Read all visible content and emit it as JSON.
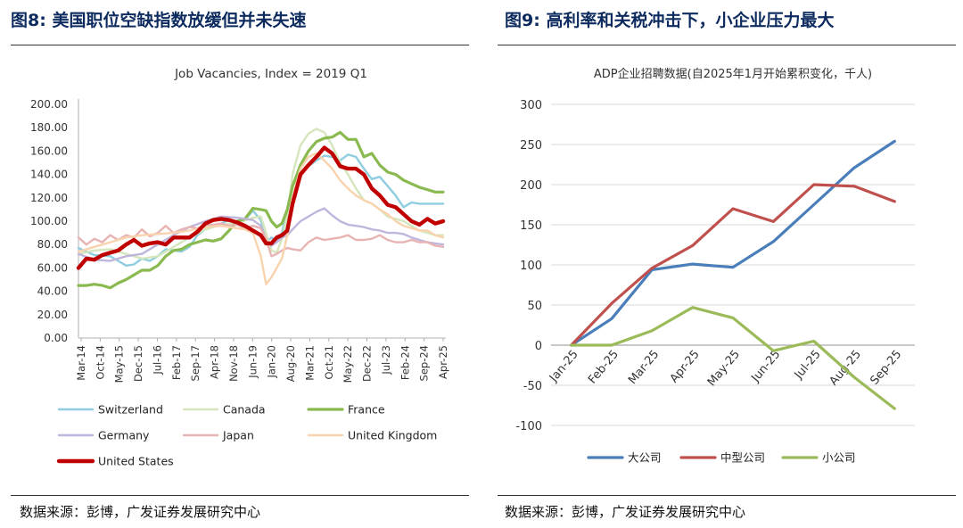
{
  "left_figure": {
    "number": "图8:",
    "title": "美国职位空缺指数放缓但并未失速",
    "source": "数据来源：彭博，广发证券发展研究中心"
  },
  "right_figure": {
    "number": "图9:",
    "title": "高利率和关税冲击下，小企业压力最大",
    "source": "数据来源：彭博，广发证券发展研究中心"
  },
  "chart_data": [
    {
      "type": "line",
      "title": "Job Vacancies, Index = 2019 Q1",
      "xlabel": "",
      "ylabel": "",
      "ylim": [
        0,
        200
      ],
      "ytick_labels": [
        "0.00",
        "20.00",
        "40.00",
        "60.00",
        "80.00",
        "100.00",
        "120.00",
        "140.00",
        "160.00",
        "180.00",
        "200.00"
      ],
      "x_tick_labels": [
        "Mar-14",
        "Oct-14",
        "May-15",
        "Dec-15",
        "Jul-16",
        "Feb-17",
        "Sep-17",
        "Apr-18",
        "Nov-18",
        "Jun-19",
        "Jan-20",
        "Aug-20",
        "Mar-21",
        "Oct-21",
        "May-22",
        "Dec-22",
        "Jul-23",
        "Feb-24",
        "Sep-24",
        "Apr-25"
      ],
      "x_range_months": [
        0,
        139
      ],
      "legend_position": "bottom",
      "series": [
        {
          "name": "Switzerland",
          "color": "#8fcde0",
          "width": 2.4,
          "x": [
            0,
            6,
            12,
            15,
            18,
            21,
            24,
            27,
            30,
            33,
            36,
            39,
            42,
            45,
            48,
            51,
            54,
            57,
            60,
            63,
            66,
            69,
            71,
            73,
            75,
            77,
            79,
            81,
            84,
            87,
            90,
            93,
            96,
            99,
            102,
            105,
            108,
            111,
            114,
            117,
            120,
            123,
            126,
            129,
            132,
            135,
            138
          ],
          "y": [
            77,
            71,
            70,
            66,
            62,
            63,
            68,
            66,
            70,
            76,
            75,
            74,
            78,
            88,
            93,
            95,
            98,
            101,
            100,
            101,
            109,
            101,
            82,
            86,
            83,
            90,
            110,
            130,
            142,
            147,
            152,
            156,
            155,
            152,
            157,
            155,
            145,
            136,
            138,
            130,
            122,
            112,
            116,
            115,
            115,
            115,
            115
          ]
        },
        {
          "name": "Canada",
          "color": "#d5e6bd",
          "width": 2.4,
          "x": [
            0,
            6,
            12,
            18,
            24,
            30,
            36,
            42,
            48,
            54,
            60,
            66,
            69,
            71,
            73,
            75,
            77,
            79,
            81,
            84,
            87,
            90,
            93,
            96,
            99,
            102,
            105,
            108,
            111,
            114,
            117,
            120,
            123,
            126,
            129,
            132,
            135,
            138
          ],
          "y": [
            72,
            75,
            76,
            72,
            68,
            70,
            78,
            86,
            93,
            97,
            98,
            103,
            104,
            90,
            75,
            73,
            85,
            105,
            140,
            165,
            175,
            179,
            176,
            165,
            150,
            140,
            128,
            118,
            115,
            110,
            104,
            102,
            100,
            96,
            92,
            90,
            88,
            88
          ]
        },
        {
          "name": "France",
          "color": "#8aba4f",
          "width": 3.2,
          "x": [
            0,
            3,
            6,
            9,
            12,
            15,
            18,
            21,
            24,
            27,
            30,
            33,
            36,
            39,
            42,
            45,
            48,
            51,
            54,
            57,
            60,
            63,
            66,
            69,
            71,
            73,
            75,
            77,
            79,
            81,
            84,
            87,
            90,
            93,
            96,
            99,
            102,
            105,
            108,
            111,
            114,
            117,
            120,
            123,
            126,
            129,
            132,
            135,
            138
          ],
          "y": [
            45,
            45,
            46,
            45,
            43,
            47,
            50,
            54,
            58,
            58,
            62,
            70,
            75,
            76,
            80,
            82,
            84,
            83,
            85,
            92,
            100,
            102,
            111,
            110,
            109,
            100,
            95,
            98,
            110,
            130,
            148,
            160,
            168,
            171,
            172,
            176,
            170,
            170,
            155,
            158,
            148,
            142,
            140,
            135,
            132,
            129,
            127,
            125,
            125
          ]
        },
        {
          "name": "Germany",
          "color": "#c0b6dc",
          "width": 2.4,
          "x": [
            0,
            6,
            12,
            18,
            24,
            30,
            36,
            42,
            48,
            54,
            60,
            66,
            69,
            71,
            73,
            75,
            77,
            79,
            81,
            84,
            87,
            90,
            93,
            96,
            99,
            102,
            105,
            108,
            111,
            114,
            117,
            120,
            123,
            126,
            129,
            132,
            135,
            138
          ],
          "y": [
            72,
            67,
            66,
            70,
            72,
            80,
            88,
            95,
            100,
            104,
            103,
            101,
            96,
            84,
            79,
            82,
            86,
            88,
            93,
            100,
            104,
            108,
            111,
            105,
            100,
            97,
            96,
            95,
            93,
            92,
            90,
            90,
            89,
            86,
            84,
            82,
            81,
            80
          ]
        },
        {
          "name": "Japan",
          "color": "#e8b3b3",
          "width": 2.4,
          "x": [
            0,
            3,
            6,
            9,
            12,
            15,
            18,
            21,
            24,
            27,
            30,
            33,
            36,
            39,
            42,
            45,
            48,
            51,
            54,
            57,
            60,
            63,
            66,
            69,
            71,
            73,
            75,
            77,
            79,
            81,
            84,
            87,
            90,
            93,
            96,
            99,
            102,
            105,
            108,
            111,
            114,
            117,
            120,
            123,
            126,
            129,
            132,
            135,
            138
          ],
          "y": [
            86,
            80,
            85,
            82,
            88,
            84,
            88,
            86,
            93,
            87,
            90,
            96,
            90,
            93,
            95,
            94,
            96,
            97,
            98,
            96,
            97,
            94,
            96,
            94,
            85,
            70,
            72,
            75,
            77,
            76,
            75,
            82,
            86,
            84,
            85,
            86,
            88,
            84,
            84,
            85,
            88,
            84,
            82,
            82,
            84,
            82,
            82,
            79,
            78
          ]
        },
        {
          "name": "United Kingdom",
          "color": "#f9d3ad",
          "width": 2.4,
          "x": [
            0,
            6,
            12,
            18,
            24,
            30,
            36,
            42,
            48,
            54,
            60,
            63,
            66,
            69,
            71,
            73,
            75,
            77,
            79,
            81,
            84,
            87,
            90,
            93,
            96,
            99,
            102,
            105,
            108,
            111,
            114,
            117,
            120,
            123,
            126,
            129,
            132,
            135,
            138
          ],
          "y": [
            74,
            78,
            82,
            86,
            88,
            89,
            90,
            92,
            95,
            96,
            94,
            93,
            90,
            70,
            46,
            52,
            60,
            68,
            88,
            120,
            145,
            155,
            158,
            152,
            145,
            135,
            128,
            122,
            118,
            115,
            110,
            106,
            100,
            96,
            94,
            92,
            92,
            88,
            86
          ]
        },
        {
          "name": "United States",
          "color": "#c00000",
          "width": 4.4,
          "x": [
            0,
            3,
            6,
            9,
            12,
            15,
            18,
            21,
            24,
            27,
            30,
            33,
            36,
            39,
            42,
            45,
            48,
            51,
            54,
            57,
            60,
            63,
            66,
            69,
            71,
            73,
            75,
            77,
            79,
            81,
            84,
            87,
            90,
            93,
            96,
            99,
            102,
            105,
            108,
            111,
            114,
            117,
            120,
            123,
            126,
            129,
            132,
            135,
            138
          ],
          "y": [
            60,
            68,
            67,
            71,
            73,
            75,
            80,
            84,
            79,
            81,
            82,
            80,
            86,
            86,
            86,
            91,
            98,
            101,
            102,
            101,
            99,
            96,
            92,
            88,
            81,
            81,
            86,
            88,
            92,
            115,
            140,
            148,
            155,
            163,
            158,
            147,
            145,
            145,
            140,
            128,
            122,
            114,
            112,
            106,
            100,
            97,
            102,
            98,
            100
          ]
        }
      ]
    },
    {
      "type": "line",
      "title": "ADP企业招聘数据(自2025年1月开始累积变化，千人)",
      "xlabel": "",
      "ylabel": "",
      "ylim": [
        -100,
        300
      ],
      "ytick_labels": [
        "-100",
        "-50",
        "0",
        "50",
        "100",
        "150",
        "200",
        "250",
        "300"
      ],
      "categories": [
        "Jan-25",
        "Feb-25",
        "Mar-25",
        "Apr-25",
        "May-25",
        "Jun-25",
        "Jul-25",
        "Aug-25",
        "Sep-25"
      ],
      "legend_position": "bottom",
      "series": [
        {
          "name": "大公司",
          "color": "#4a7ebb",
          "width": 3.2,
          "values": [
            0,
            33,
            94,
            101,
            97,
            129,
            175,
            221,
            254
          ]
        },
        {
          "name": "中型公司",
          "color": "#c0504d",
          "width": 3.2,
          "values": [
            0,
            52,
            96,
            124,
            170,
            154,
            200,
            198,
            179
          ]
        },
        {
          "name": "小公司",
          "color": "#9bbb59",
          "width": 3.2,
          "values": [
            0,
            0,
            18,
            47,
            34,
            -7,
            5,
            -40,
            -79
          ]
        }
      ]
    }
  ]
}
